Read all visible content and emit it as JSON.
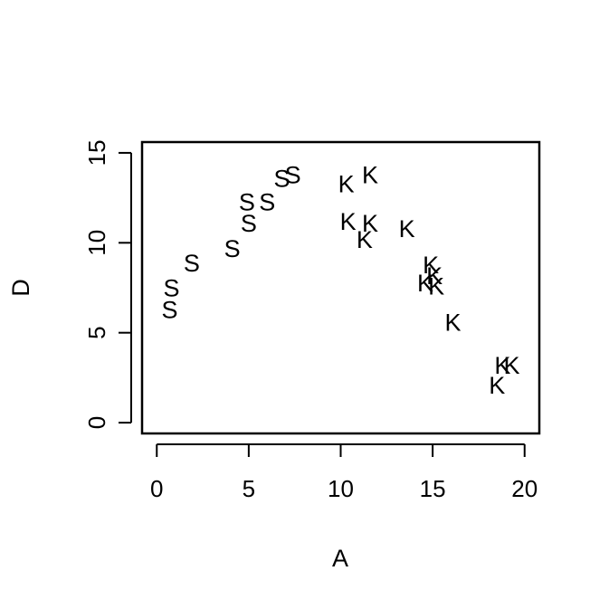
{
  "chart_data": {
    "type": "scatter",
    "title": "",
    "xlabel": "A",
    "ylabel": "D",
    "xlim": [
      -0.8,
      20.8
    ],
    "ylim": [
      -0.6,
      15.6
    ],
    "x_ticks": [
      0,
      5,
      10,
      15,
      20
    ],
    "y_ticks": [
      0,
      5,
      10,
      15
    ],
    "grid": false,
    "legend": "none",
    "marker_style": "letter",
    "series": [
      {
        "label": "S",
        "points": [
          {
            "x": 0.7,
            "y": 6.3
          },
          {
            "x": 0.8,
            "y": 7.5
          },
          {
            "x": 1.9,
            "y": 8.9
          },
          {
            "x": 4.1,
            "y": 9.7
          },
          {
            "x": 5.0,
            "y": 11.1
          },
          {
            "x": 4.9,
            "y": 12.3
          },
          {
            "x": 6.0,
            "y": 12.3
          },
          {
            "x": 6.8,
            "y": 13.6
          },
          {
            "x": 7.4,
            "y": 13.8
          }
        ]
      },
      {
        "label": "K",
        "points": [
          {
            "x": 10.3,
            "y": 13.3
          },
          {
            "x": 11.6,
            "y": 13.8
          },
          {
            "x": 10.4,
            "y": 11.2
          },
          {
            "x": 11.6,
            "y": 11.1
          },
          {
            "x": 11.3,
            "y": 10.2
          },
          {
            "x": 13.6,
            "y": 10.8
          },
          {
            "x": 14.9,
            "y": 8.8
          },
          {
            "x": 15.1,
            "y": 8.2
          },
          {
            "x": 14.6,
            "y": 7.8
          },
          {
            "x": 15.2,
            "y": 7.6
          },
          {
            "x": 16.1,
            "y": 5.6
          },
          {
            "x": 18.8,
            "y": 3.2
          },
          {
            "x": 19.3,
            "y": 3.2
          },
          {
            "x": 18.5,
            "y": 2.1
          }
        ]
      }
    ]
  }
}
